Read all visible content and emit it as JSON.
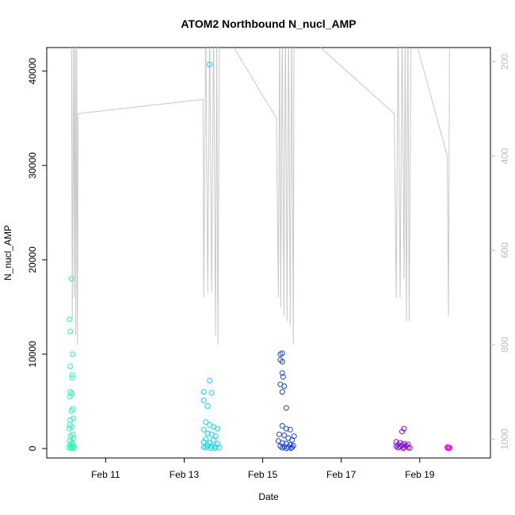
{
  "chart_data": {
    "type": "scatter",
    "title": "ATOM2 Northbound N_nucl_AMP",
    "xlabel": "Date",
    "ylabel": "N_nucl_AMP",
    "x_range_days": [
      9.5,
      20.8
    ],
    "ylim": [
      -1000,
      42500
    ],
    "y2lim": [
      1040,
      170
    ],
    "x_ticks": [
      {
        "day": 11,
        "label": "Feb 11"
      },
      {
        "day": 13,
        "label": "Feb 13"
      },
      {
        "day": 15,
        "label": "Feb 15"
      },
      {
        "day": 17,
        "label": "Feb 17"
      },
      {
        "day": 19,
        "label": "Feb 19"
      }
    ],
    "y_ticks": [
      0,
      10000,
      20000,
      30000,
      40000
    ],
    "y2_ticks": [
      200,
      400,
      600,
      800,
      1000
    ],
    "grid": false,
    "secondary_line": {
      "color": "#c8c8c8",
      "points": [
        [
          10.13,
          120
        ],
        [
          10.15,
          745
        ],
        [
          10.18,
          120
        ],
        [
          10.2,
          700
        ],
        [
          10.22,
          120
        ],
        [
          10.24,
          780
        ],
        [
          10.26,
          120
        ],
        [
          10.28,
          800
        ],
        [
          10.3,
          310
        ],
        [
          13.48,
          280
        ],
        [
          13.5,
          700
        ],
        [
          13.55,
          120
        ],
        [
          13.6,
          690
        ],
        [
          13.65,
          120
        ],
        [
          13.7,
          690
        ],
        [
          13.75,
          120
        ],
        [
          13.8,
          780
        ],
        [
          13.83,
          120
        ],
        [
          13.86,
          800
        ],
        [
          13.9,
          120
        ],
        [
          15.35,
          320
        ],
        [
          15.4,
          700
        ],
        [
          15.43,
          120
        ],
        [
          15.46,
          720
        ],
        [
          15.5,
          120
        ],
        [
          15.54,
          740
        ],
        [
          15.58,
          120
        ],
        [
          15.62,
          750
        ],
        [
          15.66,
          120
        ],
        [
          15.7,
          760
        ],
        [
          15.74,
          120
        ],
        [
          15.78,
          800
        ],
        [
          15.8,
          120
        ],
        [
          18.35,
          310
        ],
        [
          18.4,
          700
        ],
        [
          18.45,
          120
        ],
        [
          18.5,
          700
        ],
        [
          18.55,
          120
        ],
        [
          18.6,
          660
        ],
        [
          18.63,
          120
        ],
        [
          18.66,
          750
        ],
        [
          18.7,
          120
        ],
        [
          18.73,
          750
        ],
        [
          18.78,
          120
        ],
        [
          19.7,
          400
        ],
        [
          19.73,
          740
        ],
        [
          19.76,
          120
        ]
      ]
    },
    "series": [
      {
        "color": "#1affb0",
        "points": [
          [
            10.08,
            13700
          ],
          [
            10.1,
            12400
          ],
          [
            10.13,
            18000
          ],
          [
            10.16,
            10000
          ],
          [
            10.1,
            8700
          ],
          [
            10.15,
            7800
          ],
          [
            10.15,
            7500
          ],
          [
            10.1,
            6000
          ],
          [
            10.14,
            5800
          ],
          [
            10.09,
            5500
          ],
          [
            10.16,
            4200
          ],
          [
            10.13,
            4000
          ],
          [
            10.1,
            3000
          ],
          [
            10.18,
            3200
          ],
          [
            10.09,
            2500
          ],
          [
            10.14,
            2300
          ],
          [
            10.07,
            2100
          ],
          [
            10.16,
            1500
          ],
          [
            10.11,
            1300
          ],
          [
            10.19,
            1100
          ],
          [
            10.08,
            800
          ],
          [
            10.13,
            600
          ],
          [
            10.17,
            400
          ],
          [
            10.1,
            300
          ],
          [
            10.15,
            200
          ],
          [
            10.2,
            150
          ],
          [
            10.06,
            100
          ],
          [
            10.12,
            50
          ],
          [
            10.18,
            30
          ]
        ]
      },
      {
        "color": "#00d8ff",
        "points": [
          [
            13.65,
            40700
          ],
          [
            13.65,
            7200
          ],
          [
            13.5,
            6000
          ],
          [
            13.7,
            5900
          ],
          [
            13.5,
            5100
          ],
          [
            13.6,
            4500
          ],
          [
            13.55,
            2800
          ],
          [
            13.65,
            2500
          ],
          [
            13.75,
            2300
          ],
          [
            13.85,
            2100
          ],
          [
            13.5,
            2000
          ],
          [
            13.6,
            1600
          ],
          [
            13.7,
            1500
          ],
          [
            13.8,
            1300
          ],
          [
            13.55,
            1000
          ],
          [
            13.75,
            900
          ],
          [
            13.5,
            700
          ],
          [
            13.65,
            600
          ],
          [
            13.85,
            500
          ],
          [
            13.6,
            300
          ],
          [
            13.7,
            250
          ],
          [
            13.8,
            200
          ],
          [
            13.5,
            150
          ],
          [
            13.55,
            100
          ],
          [
            13.9,
            80
          ],
          [
            13.68,
            50
          ],
          [
            13.78,
            30
          ]
        ]
      },
      {
        "color": "#1840ff",
        "points": [
          [
            15.45,
            10000
          ],
          [
            15.5,
            10100
          ],
          [
            15.45,
            9400
          ],
          [
            15.5,
            9200
          ],
          [
            15.5,
            8000
          ],
          [
            15.52,
            7600
          ],
          [
            15.45,
            6800
          ],
          [
            15.55,
            6600
          ],
          [
            15.5,
            6000
          ],
          [
            15.6,
            4300
          ],
          [
            15.5,
            2400
          ],
          [
            15.6,
            2100
          ],
          [
            15.7,
            2000
          ],
          [
            15.42,
            1500
          ],
          [
            15.55,
            1400
          ],
          [
            15.8,
            1300
          ],
          [
            15.65,
            1100
          ],
          [
            15.75,
            900
          ],
          [
            15.4,
            800
          ],
          [
            15.5,
            600
          ],
          [
            15.6,
            500
          ],
          [
            15.7,
            400
          ],
          [
            15.78,
            300
          ],
          [
            15.45,
            250
          ],
          [
            15.55,
            200
          ],
          [
            15.65,
            150
          ],
          [
            15.75,
            120
          ],
          [
            15.5,
            80
          ],
          [
            15.72,
            40
          ],
          [
            15.6,
            20
          ]
        ]
      },
      {
        "color": "#8000ff",
        "points": [
          [
            18.6,
            2100
          ],
          [
            18.55,
            1800
          ],
          [
            18.4,
            700
          ],
          [
            18.5,
            600
          ],
          [
            18.6,
            500
          ],
          [
            18.7,
            450
          ],
          [
            18.45,
            400
          ],
          [
            18.55,
            350
          ],
          [
            18.65,
            300
          ],
          [
            18.4,
            250
          ],
          [
            18.5,
            200
          ],
          [
            18.6,
            150
          ],
          [
            18.7,
            120
          ],
          [
            18.45,
            100
          ],
          [
            18.75,
            60
          ],
          [
            18.58,
            30
          ]
        ]
      },
      {
        "color": "#ff00ff",
        "points": [
          [
            19.7,
            150
          ],
          [
            19.73,
            100
          ],
          [
            19.76,
            80
          ],
          [
            19.71,
            50
          ],
          [
            19.75,
            30
          ]
        ]
      }
    ]
  }
}
